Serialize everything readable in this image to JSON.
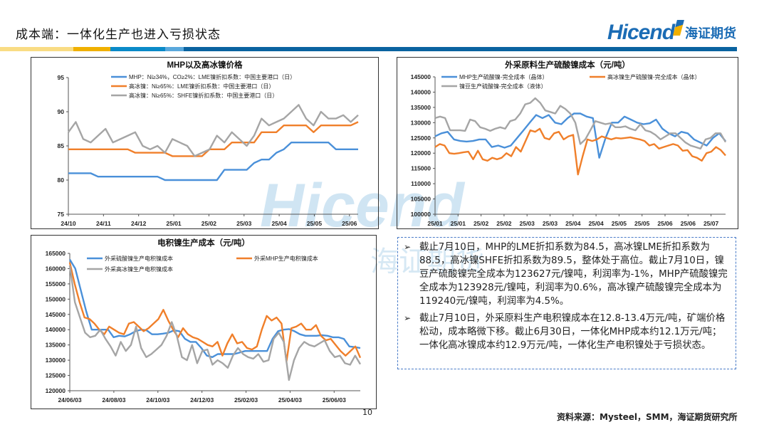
{
  "header": {
    "title": "成本端：一体化生产也进入亏损状态",
    "logo_en": "Hicend",
    "logo_cn": "海证期货",
    "band_colors": [
      "#f9dc84",
      "#f0b000",
      "#0a8ac8",
      "#5aa8dc",
      "#0a63a0"
    ]
  },
  "watermark": {
    "en": "Hicend",
    "cn": "海证期货"
  },
  "chart_data": [
    {
      "type": "line",
      "title": "MHP以及高冰镍价格",
      "ylim": [
        75,
        95
      ],
      "yticks": [
        75,
        80,
        85,
        90,
        95
      ],
      "xticks": [
        "24/10",
        "24/11",
        "24/12",
        "25/01",
        "25/02",
        "25/03",
        "25/04",
        "25/05",
        "25/06"
      ],
      "grid": false,
      "legend": "top",
      "series": [
        {
          "name": "MHP：Ni≥34%，CO≥2%：LME镍折扣系数：中国主要港口（日）",
          "color": "#4a90d9",
          "values": [
            81,
            81,
            81,
            81,
            80.5,
            80.5,
            80.5,
            80.5,
            80.5,
            80.5,
            80.5,
            80.5,
            80.5,
            80,
            80,
            80,
            80,
            80,
            80,
            80,
            80,
            81.5,
            81.5,
            81.5,
            81.5,
            82.5,
            83,
            83,
            84,
            84.5,
            85.5,
            85.5,
            85.5,
            85.5,
            85.5,
            85.5,
            84.5,
            84.5,
            84.5,
            84.5
          ]
        },
        {
          "name": "高冰镍：Ni≥65%：LME镍折扣系数：中国主要港口（日）",
          "color": "#f07f2a",
          "values": [
            84.5,
            84.5,
            84.5,
            84.5,
            84.5,
            84.5,
            84.5,
            84.5,
            84.5,
            84,
            84,
            84,
            84,
            84,
            83.5,
            83.5,
            83.5,
            83.5,
            83.5,
            84.5,
            84.5,
            84.5,
            85.5,
            85.5,
            85.5,
            85.5,
            87,
            87,
            87,
            88,
            88,
            88,
            88,
            87,
            88,
            88,
            88,
            88,
            88,
            88.5
          ]
        },
        {
          "name": "高冰镍：Ni≥65%：SHFE镍折扣系数：中国主要港口（日）",
          "color": "#a5a5a5",
          "values": [
            87,
            88.5,
            86,
            85.5,
            86.5,
            87.5,
            85.5,
            86,
            86.5,
            87,
            85,
            84.5,
            85,
            84,
            86,
            85.5,
            85,
            83.5,
            84,
            84.5,
            86.5,
            85.5,
            87,
            86,
            85,
            86.5,
            89,
            88,
            88.5,
            89,
            90,
            91,
            89,
            88,
            90,
            89,
            89,
            89.5,
            88.5,
            89.5
          ]
        }
      ]
    },
    {
      "type": "line",
      "title": "外采原料生产硫酸镍成本（元/吨）",
      "ylim": [
        100000,
        145000
      ],
      "yticks": [
        100000,
        105000,
        110000,
        115000,
        120000,
        125000,
        130000,
        135000,
        140000,
        145000
      ],
      "xticks": [
        "25/01",
        "25/01",
        "25/02",
        "25/02",
        "25/03",
        "25/03",
        "25/04",
        "25/04",
        "25/05",
        "25/05",
        "25/06",
        "25/06",
        "25/07"
      ],
      "grid": false,
      "legend": "top",
      "series": [
        {
          "name": "MHP生产硫酸镍-完全成本（晶体）",
          "color": "#4a90d9",
          "values": [
            125500,
            126500,
            127000,
            124500,
            124000,
            123800,
            124000,
            124500,
            124500,
            122000,
            122500,
            121800,
            122500,
            125000,
            127500,
            130000,
            132500,
            131500,
            132500,
            130000,
            129500,
            131500,
            133000,
            133000,
            132000,
            131500,
            118500,
            125000,
            130000,
            130000,
            132000,
            131000,
            130000,
            129500,
            129800,
            131000,
            128000,
            126500,
            125500,
            127000,
            126500,
            124500,
            123500,
            122500,
            125000,
            126500,
            123928
          ]
        },
        {
          "name": "高冰镍生产硫酸镍-完全成本（晶体）",
          "color": "#f07f2a",
          "values": [
            122000,
            123000,
            122500,
            120000,
            119800,
            120000,
            120300,
            120500,
            118000,
            120800,
            118000,
            117500,
            118500,
            118000,
            118500,
            120000,
            119000,
            122000,
            120500,
            124000,
            127500,
            127000,
            128000,
            125000,
            124500,
            126500,
            127000,
            124500,
            125500,
            126000,
            113000,
            119000,
            124500,
            124000,
            124500,
            125500,
            125000,
            124500,
            125000,
            124800,
            125000,
            125200,
            124800,
            124500,
            124000,
            122500,
            123000,
            121500,
            122000,
            122500,
            123000,
            122500,
            120800,
            121000,
            119000,
            118500,
            117500,
            120000,
            120500,
            122000,
            121000,
            119240
          ]
        },
        {
          "name": "镍豆生产硫酸镍-完全成本（液体）",
          "color": "#a5a5a5",
          "values": [
            131500,
            132000,
            131500,
            127500,
            127500,
            127500,
            127300,
            131000,
            130500,
            128500,
            128000,
            127300,
            128000,
            128500,
            128000,
            130500,
            131000,
            133000,
            136000,
            136500,
            138000,
            136500,
            134000,
            133500,
            133000,
            135500,
            134500,
            133000,
            130000,
            123000,
            124500,
            127500,
            130500,
            130000,
            129500,
            129800,
            128500,
            128500,
            128800,
            128000,
            127500,
            129500,
            127500,
            127000,
            126000,
            124500,
            125500,
            126500,
            126500,
            125000,
            123500,
            122500,
            122000,
            121500,
            124500,
            125000,
            126500,
            126500,
            123627
          ]
        }
      ]
    },
    {
      "type": "line",
      "title": "电积镍生产成本（元/吨）",
      "ylim": [
        120000,
        165000
      ],
      "yticks": [
        120000,
        125000,
        130000,
        135000,
        140000,
        145000,
        150000,
        155000,
        160000,
        165000
      ],
      "xticks": [
        "24/06/03",
        "24/08/03",
        "24/10/03",
        "24/12/03",
        "25/02/03",
        "25/04/03",
        "25/06/03"
      ],
      "grid": false,
      "legend": "top",
      "series": [
        {
          "name": "外采硫酸镍生产电积镍成本",
          "color": "#4a90d9",
          "values": [
            163000,
            160000,
            153000,
            146000,
            140000,
            140000,
            140000,
            140000,
            137500,
            138000,
            137800,
            138500,
            139500,
            140000,
            139800,
            138500,
            138500,
            138700,
            139000,
            139800,
            139500,
            137000,
            136000,
            136000,
            134000,
            131500,
            131000,
            132000,
            132000,
            132000,
            132000,
            132500,
            133000,
            133000,
            133000,
            133000,
            133000,
            137000,
            139500,
            140000,
            140200,
            139500,
            138500,
            138000,
            138000,
            138000,
            138200,
            138000,
            137500,
            137500,
            137000,
            134500,
            134300,
            134000
          ]
        },
        {
          "name": "外采MHP生产电积镍成本",
          "color": "#f07f2a",
          "values": [
            162000,
            155000,
            149000,
            144000,
            143500,
            142000,
            140000,
            138500,
            141000,
            140000,
            139000,
            138500,
            142000,
            142500,
            141000,
            139500,
            140500,
            142000,
            143500,
            146500,
            143000,
            140000,
            137500,
            140500,
            138500,
            137500,
            137000,
            136000,
            135000,
            134500,
            136000,
            131500,
            135500,
            138500,
            135500,
            136000,
            134000,
            133500,
            134500,
            140000,
            144500,
            143000,
            144000,
            142000,
            129500,
            140500,
            141000,
            142000,
            140000,
            140000,
            141500,
            138000,
            136500,
            137000,
            135000,
            133000,
            131500,
            133000,
            134500,
            130800
          ]
        },
        {
          "name": "外采高冰镍生产电积镍成本",
          "color": "#a5a5a5",
          "values": [
            161000,
            149000,
            144000,
            139000,
            137500,
            138000,
            140000,
            137000,
            134500,
            131500,
            136000,
            133000,
            135000,
            141000,
            134000,
            131000,
            132000,
            133500,
            135000,
            138000,
            142500,
            138000,
            131000,
            130000,
            135000,
            129000,
            133000,
            133500,
            128500,
            130000,
            129000,
            127500,
            131500,
            134000,
            132000,
            131000,
            130500,
            132000,
            129500,
            130000,
            137000,
            139000,
            136000,
            123500,
            130000,
            134000,
            136000,
            135000,
            134500,
            135500,
            136500,
            133000,
            131000,
            131500,
            129000,
            128500,
            131500,
            128700
          ]
        }
      ]
    }
  ],
  "notes": [
    "截止7月10日，MHP的LME折扣系数为84.5，高冰镍LME折扣系数为88.5，高冰镍SHFE折扣系数为89.5，整体处于高位。截止7月10日，镍豆产硫酸镍完全成本为123627元/镍吨，利润率为-1%，MHP产硫酸镍完全成本为123928元/镍吨，利润率为0.6%，高冰镍产硫酸镍完全成本为119240元/镍吨，利润率为4.5%。",
    "截止7月10日，外采原料生产电积镍成本在12.8-13.4万元/吨，矿端价格松动，成本略微下移。截止6月30日，一体化MHP成本约12.1万元/吨；一体化高冰镍成本约12.9万元/吨，一体化生产电积镍处于亏损状态。"
  ],
  "footer": {
    "page_number": "10",
    "source": "资料来源：Mysteel，SMM，海证期货研究所"
  }
}
